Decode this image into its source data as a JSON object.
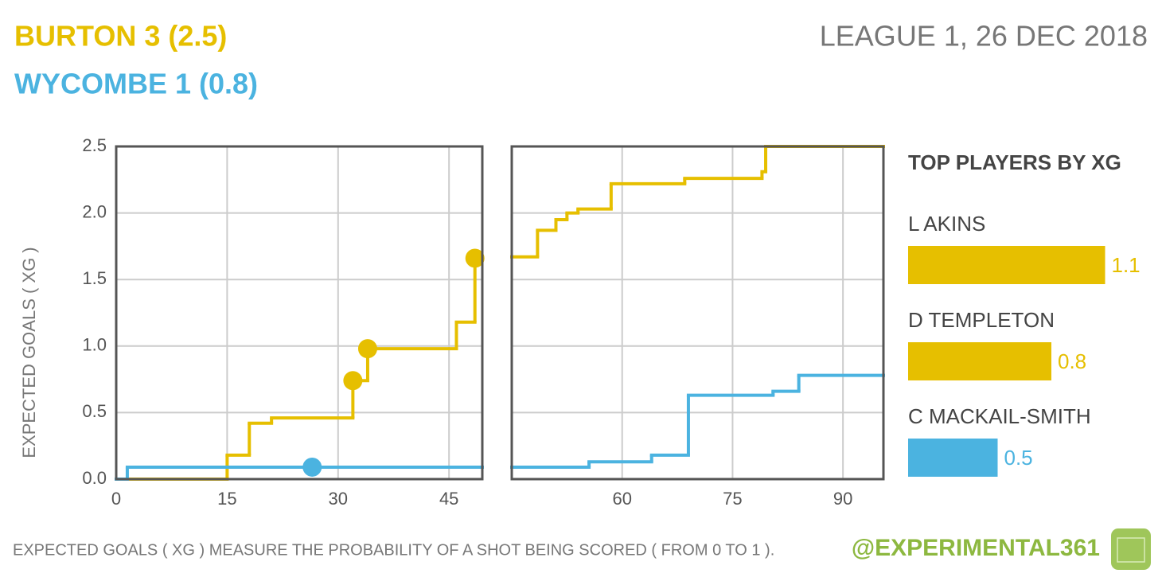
{
  "header": {
    "home": "BURTON 3 (2.5)",
    "away": "WYCOMBE 1 (0.8)",
    "competition": "LEAGUE 1, 26 DEC 2018"
  },
  "chart_data": [
    {
      "type": "step",
      "ylabel": "EXPECTED GOALS ( XG )",
      "xlim": [
        0,
        49.5
      ],
      "ylim": [
        0,
        2.5
      ],
      "xticks": [
        0,
        15,
        30,
        45
      ],
      "yticks": [
        {
          "value": 0,
          "label": "0.0"
        },
        {
          "value": 0.5,
          "label": "0.5"
        },
        {
          "value": 1,
          "label": "1.0"
        },
        {
          "value": 1.5,
          "label": "1.5"
        },
        {
          "value": 2,
          "label": "2.0"
        },
        {
          "value": 2.5,
          "label": "2.5"
        }
      ],
      "grid": true,
      "series": [
        {
          "color": "#e6bf00",
          "x": [
            0,
            15,
            18,
            21,
            32,
            34,
            46,
            48.5
          ],
          "values": [
            0,
            0.18,
            0.42,
            0.46,
            0.74,
            0.98,
            1.18,
            1.66
          ],
          "goals": {
            "x": [
              32,
              34,
              48.5
            ],
            "values": [
              0.74,
              0.98,
              1.66
            ]
          }
        },
        {
          "color": "#4bb3e0",
          "x": [
            0,
            1.5
          ],
          "values": [
            0,
            0.09
          ],
          "goals": {
            "x": [
              26.5
            ],
            "values": [
              0.09
            ]
          }
        }
      ]
    },
    {
      "type": "step",
      "xlim": [
        45,
        95.5
      ],
      "ylim": [
        0,
        2.5
      ],
      "xticks": [
        60,
        75,
        90
      ],
      "yticks": [
        0,
        0.5,
        1,
        1.5,
        2,
        2.5
      ],
      "ytick_labels": false,
      "grid": true,
      "series": [
        {
          "color": "#e6bf00",
          "x": [
            45,
            48.5,
            51,
            52.5,
            54,
            58.5,
            68.5,
            79,
            79.5
          ],
          "values": [
            1.67,
            1.87,
            1.95,
            2.0,
            2.03,
            2.22,
            2.26,
            2.31,
            2.5
          ]
        },
        {
          "color": "#4bb3e0",
          "x": [
            45,
            55.5,
            64,
            69,
            80.5,
            84
          ],
          "values": [
            0.09,
            0.13,
            0.18,
            0.63,
            0.66,
            0.78
          ]
        }
      ]
    },
    {
      "type": "bar",
      "orientation": "horizontal",
      "title": "TOP PLAYERS BY XG",
      "categories": [
        "L AKINS",
        "D TEMPLETON",
        "C MACKAIL-SMITH"
      ],
      "values": [
        1.1,
        0.8,
        0.5
      ],
      "colors": [
        "#e6bf00",
        "#e6bf00",
        "#4bb3e0"
      ]
    }
  ],
  "footer": {
    "note": "EXPECTED GOALS ( XG ) MEASURE THE PROBABILITY  OF A SHOT BEING SCORED ( FROM 0 TO 1 ).",
    "handle": "@EXPERIMENTAL361"
  }
}
